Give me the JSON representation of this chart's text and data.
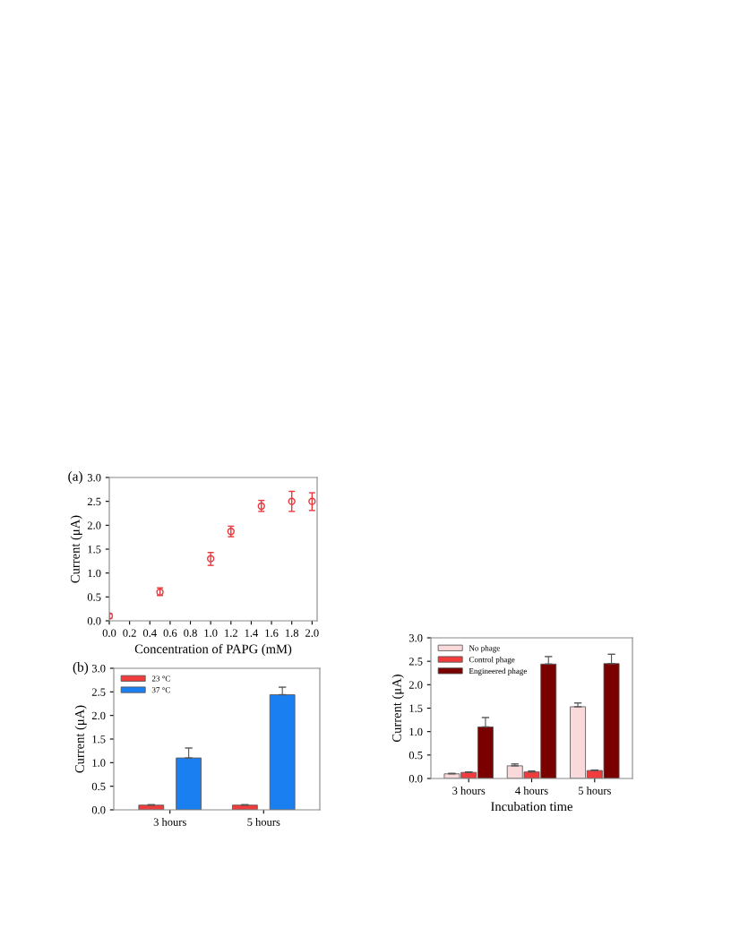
{
  "chart_data": [
    {
      "type": "scatter",
      "annotations": [
        "(a)"
      ],
      "xlabel": "Concentration of PAPG (mM)",
      "ylabel": "Current (μA)",
      "x": [
        0.0,
        0.5,
        1.0,
        1.2,
        1.5,
        1.8,
        2.0
      ],
      "series": [
        {
          "color": "#e8383d",
          "values": [
            0.1,
            0.6,
            1.3,
            1.87,
            2.4,
            2.5,
            2.5
          ],
          "errors": [
            [
              0.05,
              0.15
            ],
            [
              0.53,
              0.69
            ],
            [
              1.16,
              1.43
            ],
            [
              1.76,
              1.98
            ],
            [
              2.29,
              2.52
            ],
            [
              2.29,
              2.71
            ],
            [
              2.31,
              2.68
            ]
          ]
        }
      ],
      "marker": "circle",
      "xlim": [
        0,
        2.05
      ],
      "xticks": [
        {
          "value": 0,
          "label": "0.0"
        },
        0.2,
        0.4,
        0.6,
        0.8,
        {
          "value": 1,
          "label": "1.0"
        },
        1.2,
        1.4,
        1.6,
        1.8,
        {
          "value": 2,
          "label": "2.0"
        }
      ],
      "ylim": [
        0,
        3
      ],
      "yticks": [
        {
          "value": 0,
          "label": "0.0"
        },
        0.5,
        {
          "value": 1,
          "label": "1.0"
        },
        1.5,
        {
          "value": 2,
          "label": "2.0"
        },
        2.5,
        {
          "value": 3,
          "label": "3.0"
        }
      ],
      "grid": false
    },
    {
      "type": "bar",
      "annotations": [
        "(b)"
      ],
      "ylabel": "Current (μA)",
      "categories": [
        "3 hours",
        "5 hours"
      ],
      "series": [
        {
          "name": "23 °C",
          "color": "#f03c3c",
          "values": [
            0.1,
            0.1
          ],
          "errors": [
            [
              0.1,
              0.11
            ],
            [
              0.1,
              0.11
            ]
          ]
        },
        {
          "name": "37 °C",
          "color": "#1a7ff0",
          "values": [
            1.1,
            2.44
          ],
          "errors": [
            [
              1.1,
              1.31
            ],
            [
              2.44,
              2.6
            ]
          ]
        }
      ],
      "ylim": [
        0,
        3
      ],
      "yticks": [
        {
          "value": 0,
          "label": "0.0"
        },
        0.5,
        {
          "value": 1,
          "label": "1.0"
        },
        1.5,
        {
          "value": 2,
          "label": "2.0"
        },
        2.5,
        {
          "value": 3,
          "label": "3.0"
        }
      ],
      "legend": "top left",
      "grid": false
    },
    {
      "type": "bar",
      "xlabel": "Incubation time",
      "ylabel": "Current (μA)",
      "categories": [
        "3 hours",
        "4 hours",
        "5 hours"
      ],
      "series": [
        {
          "name": "No phage",
          "color": "#f9d9d9",
          "values": [
            0.1,
            0.27,
            1.53
          ],
          "errors": [
            [
              0.1,
              0.11
            ],
            [
              0.27,
              0.31
            ],
            [
              1.53,
              1.61
            ]
          ]
        },
        {
          "name": "Control phage",
          "color": "#f03c3c",
          "values": [
            0.13,
            0.14,
            0.17
          ],
          "errors": [
            [
              0.13,
              0.14
            ],
            [
              0.14,
              0.16
            ],
            [
              0.17,
              0.18
            ]
          ]
        },
        {
          "name": "Engineered phage",
          "color": "#7a0000",
          "values": [
            1.1,
            2.44,
            2.45
          ],
          "errors": [
            [
              1.1,
              1.3
            ],
            [
              2.44,
              2.6
            ],
            [
              2.45,
              2.65
            ]
          ]
        }
      ],
      "ylim": [
        0,
        3
      ],
      "yticks": [
        {
          "value": 0,
          "label": "0.0"
        },
        0.5,
        {
          "value": 1,
          "label": "1.0"
        },
        1.5,
        {
          "value": 2,
          "label": "2.0"
        },
        2.5,
        {
          "value": 3,
          "label": "3.0"
        }
      ],
      "legend": "top left",
      "grid": false
    }
  ]
}
